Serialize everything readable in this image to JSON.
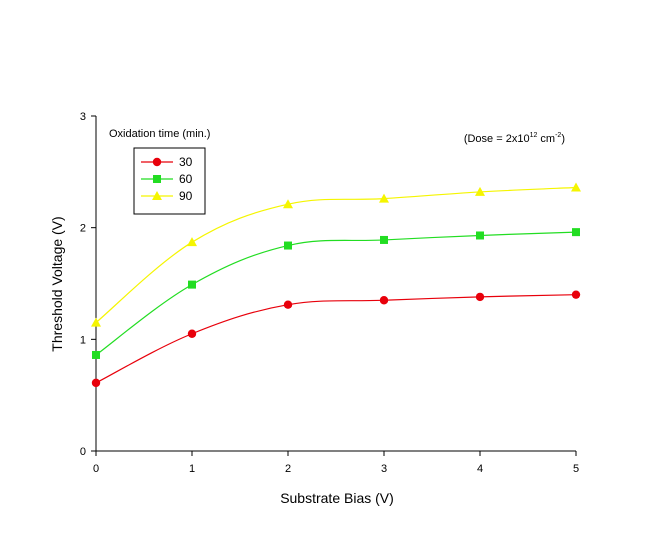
{
  "chart_data": {
    "type": "line",
    "xlabel": "Substrate Bias (V)",
    "ylabel": "Threshold Voltage (V)",
    "xlim": [
      0,
      5
    ],
    "ylim": [
      0,
      3
    ],
    "xticks": [
      "0",
      "1",
      "2",
      "3",
      "4",
      "5"
    ],
    "yticks": [
      "0",
      "1",
      "2",
      "3"
    ],
    "grid": false,
    "legend": {
      "title": "Oxidation time (min.)",
      "placement": "top-left"
    },
    "annotation": {
      "prefix": "(Dose = 2x10",
      "exponent": "12",
      "unit": " cm",
      "unit_exponent": "-2",
      "suffix": ")"
    },
    "x": [
      0,
      1,
      2,
      3,
      4,
      5
    ],
    "series": [
      {
        "name": "30",
        "color": "#e8000b",
        "marker": "circle",
        "values": [
          0.61,
          1.05,
          1.31,
          1.35,
          1.38,
          1.4
        ]
      },
      {
        "name": "60",
        "color": "#22dd22",
        "marker": "square",
        "values": [
          0.86,
          1.49,
          1.84,
          1.89,
          1.93,
          1.96
        ]
      },
      {
        "name": "90",
        "color": "#f5f500",
        "marker": "triangle",
        "values": [
          1.15,
          1.87,
          2.21,
          2.26,
          2.32,
          2.36
        ]
      }
    ]
  }
}
